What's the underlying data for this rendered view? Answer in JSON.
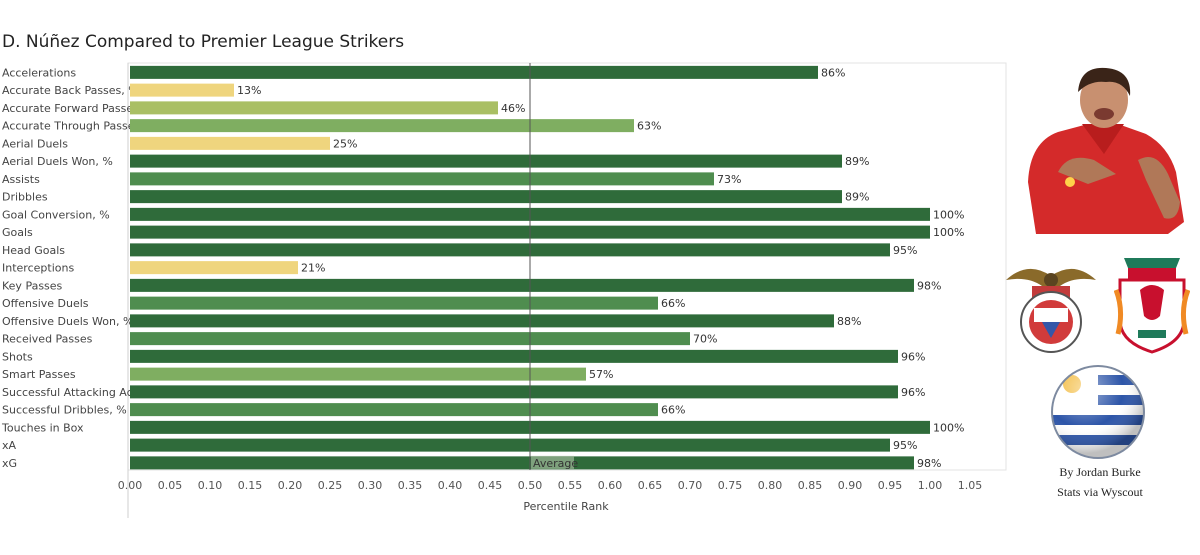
{
  "title": "D. Núñez Compared to Premier League Strikers",
  "credits": {
    "author": "By Jordan Burke",
    "source": "Stats via Wyscout"
  },
  "logos": {
    "left_club": "Benfica",
    "right_club": "Liverpool"
  },
  "colors": {
    "high": "#2f6b3a",
    "mid_high": "#4f8d4f",
    "mid": "#7fae61",
    "mid_low": "#a9bf64",
    "low": "#efd57e",
    "avg_line": "#555555"
  },
  "chart_data": {
    "type": "bar",
    "orientation": "horizontal",
    "categories": [
      "Accelerations",
      "Accurate Back Passes, %",
      "Accurate Forward Passes,..",
      "Accurate Through Passes,..",
      "Aerial Duels",
      "Aerial Duels Won, %",
      "Assists",
      "Dribbles",
      "Goal Conversion, %",
      "Goals",
      "Head Goals",
      "Interceptions",
      "Key Passes",
      "Offensive Duels",
      "Offensive Duels Won, %",
      "Received Passes",
      "Shots",
      "Smart Passes",
      "Successful Attacking Acti..",
      "Successful Dribbles, %",
      "Touches in Box",
      "xA",
      "xG"
    ],
    "values": [
      0.86,
      0.13,
      0.46,
      0.63,
      0.25,
      0.89,
      0.73,
      0.89,
      1.0,
      1.0,
      0.95,
      0.21,
      0.98,
      0.66,
      0.88,
      0.7,
      0.96,
      0.57,
      0.96,
      0.66,
      1.0,
      0.95,
      0.98
    ],
    "value_labels": [
      "86%",
      "13%",
      "46%",
      "63%",
      "25%",
      "89%",
      "73%",
      "89%",
      "100%",
      "100%",
      "95%",
      "21%",
      "98%",
      "66%",
      "88%",
      "70%",
      "96%",
      "57%",
      "96%",
      "66%",
      "100%",
      "95%",
      "98%"
    ],
    "xlabel": "Percentile Rank",
    "xlim": [
      0,
      1.05
    ],
    "ticks": [
      "0.00",
      "0.05",
      "0.10",
      "0.15",
      "0.20",
      "0.25",
      "0.30",
      "0.35",
      "0.40",
      "0.45",
      "0.50",
      "0.55",
      "0.60",
      "0.65",
      "0.70",
      "0.75",
      "0.80",
      "0.85",
      "0.90",
      "0.95",
      "1.00",
      "1.05"
    ],
    "reference_line": {
      "value": 0.5,
      "label": "Average"
    }
  }
}
